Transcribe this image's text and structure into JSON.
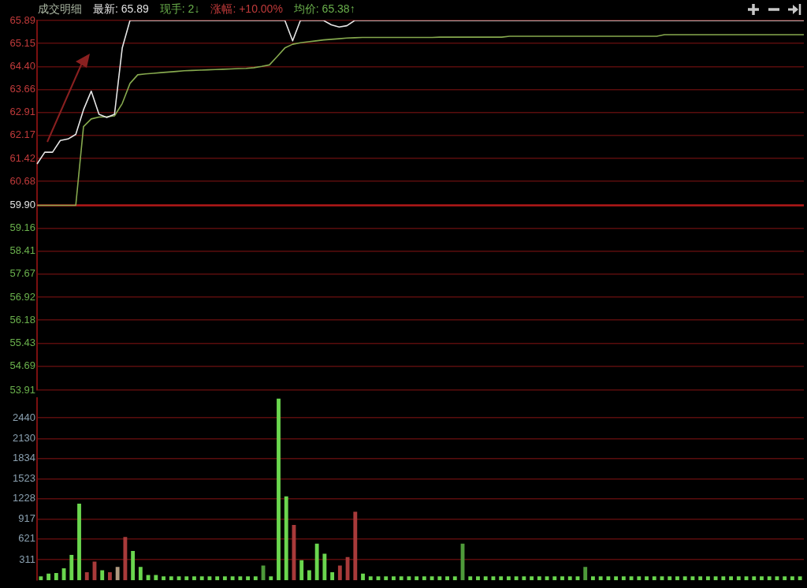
{
  "chart_data": [
    {
      "type": "line",
      "title": "成交明细",
      "annotations": [
        "最新: 65.89",
        "现手: 2↓",
        "涨幅: +10.00%",
        "均价: 65.38↑"
      ],
      "categories": [
        null,
        null,
        null,
        null,
        null,
        null,
        null,
        null,
        null,
        null,
        null,
        null,
        null,
        null,
        null,
        null,
        null,
        null,
        null,
        null,
        null,
        null,
        null,
        null,
        null,
        null,
        null,
        null,
        null,
        null,
        null,
        null,
        null,
        null,
        null,
        null,
        null,
        null,
        null,
        null,
        null,
        null,
        null,
        null,
        null,
        null,
        null,
        null,
        null,
        null,
        null,
        null,
        null,
        null,
        null,
        null,
        null,
        null,
        null,
        null,
        null,
        null,
        null,
        null,
        null,
        null,
        null,
        null,
        null,
        null,
        null,
        null,
        null,
        null,
        null,
        null,
        null,
        null,
        null,
        null,
        null,
        null,
        null,
        null,
        null,
        null,
        null,
        null,
        null,
        null,
        null,
        null,
        null,
        null,
        null,
        null,
        null,
        null,
        null,
        null
      ],
      "series": [
        {
          "color": "#e6e6e6",
          "values": [
            61.24,
            61.62,
            61.62,
            62.0,
            62.05,
            62.2,
            63.0,
            63.6,
            62.85,
            62.75,
            62.85,
            65.0,
            65.89,
            65.89,
            65.89,
            65.89,
            65.89,
            65.89,
            65.89,
            65.89,
            65.89,
            65.89,
            65.89,
            65.89,
            65.89,
            65.89,
            65.89,
            65.89,
            65.89,
            65.89,
            65.89,
            65.89,
            65.89,
            65.23,
            65.89,
            65.89,
            65.89,
            65.89,
            65.75,
            65.68,
            65.72,
            65.89,
            65.89,
            65.89,
            65.89,
            65.89,
            65.89,
            65.89,
            65.89,
            65.89,
            65.89,
            65.89,
            65.89,
            65.89,
            65.89,
            65.89,
            65.89,
            65.89,
            65.89,
            65.89,
            65.89,
            65.89,
            65.89,
            65.89,
            65.89,
            65.89,
            65.89,
            65.89,
            65.89,
            65.89,
            65.89,
            65.89,
            65.89,
            65.89,
            65.89,
            65.89,
            65.89,
            65.89,
            65.89,
            65.89,
            65.89,
            65.89,
            65.89,
            65.89,
            65.89,
            65.89,
            65.89,
            65.89,
            65.89,
            65.89,
            65.89,
            65.89,
            65.89,
            65.89,
            65.89,
            65.89,
            65.89,
            65.89,
            65.89,
            65.89
          ]
        },
        {
          "color": "#86a94e",
          "values": [
            59.9,
            59.9,
            59.9,
            59.9,
            59.9,
            59.9,
            62.45,
            62.7,
            62.76,
            62.77,
            62.8,
            63.2,
            63.85,
            64.13,
            64.16,
            64.18,
            64.2,
            64.22,
            64.24,
            64.26,
            64.27,
            64.28,
            64.29,
            64.3,
            64.31,
            64.32,
            64.33,
            64.34,
            64.36,
            64.4,
            64.45,
            64.72,
            65.0,
            65.12,
            65.17,
            65.2,
            65.23,
            65.26,
            65.28,
            65.3,
            65.32,
            65.33,
            65.34,
            65.34,
            65.34,
            65.34,
            65.34,
            65.34,
            65.34,
            65.34,
            65.34,
            65.34,
            65.35,
            65.35,
            65.35,
            65.35,
            65.35,
            65.35,
            65.35,
            65.35,
            65.35,
            65.38,
            65.38,
            65.38,
            65.38,
            65.38,
            65.38,
            65.38,
            65.38,
            65.38,
            65.38,
            65.38,
            65.38,
            65.38,
            65.38,
            65.38,
            65.38,
            65.38,
            65.38,
            65.38,
            65.38,
            65.43,
            65.43,
            65.43,
            65.43,
            65.43,
            65.43,
            65.43,
            65.43,
            65.43,
            65.43,
            65.43,
            65.43,
            65.43,
            65.43,
            65.43,
            65.43,
            65.43,
            65.43,
            65.43
          ]
        }
      ],
      "ylim": [
        53.91,
        65.89
      ],
      "yticks": [
        65.89,
        65.15,
        {
          "value": 64.4,
          "label": "64.40"
        },
        63.66,
        62.91,
        62.17,
        61.42,
        60.68,
        {
          "value": 59.9,
          "label": "59.90"
        },
        59.16,
        58.41,
        57.67,
        56.92,
        56.18,
        55.43,
        54.69,
        53.91
      ],
      "ref_lines": [
        {
          "axis": "y",
          "value": 59.9,
          "color": "#b01818"
        }
      ],
      "grid": "y",
      "marker": "none",
      "line_style": "solid",
      "tick_labels": "y",
      "legend": false
    },
    {
      "type": "bar",
      "categories": [
        null,
        null,
        null,
        null,
        null,
        null,
        null,
        null,
        null,
        null,
        null,
        null,
        null,
        null,
        null,
        null,
        null,
        null,
        null,
        null,
        null,
        null,
        null,
        null,
        null,
        null,
        null,
        null,
        null,
        null,
        null,
        null,
        null,
        null,
        null,
        null,
        null,
        null,
        null,
        null,
        null,
        null,
        null,
        null,
        null,
        null,
        null,
        null,
        null,
        null,
        null,
        null,
        null,
        null,
        null,
        null,
        null,
        null,
        null,
        null,
        null,
        null,
        null,
        null,
        null,
        null,
        null,
        null,
        null,
        null,
        null,
        null,
        null,
        null,
        null,
        null,
        null,
        null,
        null,
        null,
        null,
        null,
        null,
        null,
        null,
        null,
        null,
        null,
        null,
        null,
        null,
        null,
        null,
        null,
        null,
        null,
        null,
        null,
        null,
        null
      ],
      "values": [
        60,
        100,
        110,
        180,
        380,
        1150,
        120,
        280,
        150,
        120,
        200,
        650,
        440,
        200,
        80,
        80,
        60,
        60,
        60,
        60,
        60,
        60,
        60,
        60,
        60,
        60,
        60,
        60,
        60,
        220,
        60,
        2730,
        1260,
        830,
        300,
        150,
        550,
        400,
        120,
        220,
        350,
        1030,
        100,
        60,
        60,
        60,
        60,
        60,
        60,
        60,
        60,
        60,
        60,
        60,
        60,
        550,
        60,
        60,
        60,
        60,
        60,
        60,
        60,
        60,
        60,
        60,
        60,
        60,
        60,
        60,
        60,
        200,
        60,
        60,
        60,
        60,
        60,
        60,
        60,
        60,
        60,
        60,
        60,
        60,
        60,
        60,
        60,
        60,
        60,
        60,
        60,
        60,
        60,
        60,
        60,
        60,
        60,
        60,
        60,
        60
      ],
      "colors": [
        "#6ad64e",
        "#6ad64e",
        "#6ad64e",
        "#6ad64e",
        "#6ad64e",
        "#6ad64e",
        "#a83a3a",
        "#a83a3a",
        "#6ad64e",
        "#a83a3a",
        "#b09a80",
        "#a83a3a",
        "#6ad64e",
        "#6ad64e",
        "#6ad64e",
        "#6ad64e",
        "#6ad64e",
        "#6ad64e",
        "#6ad64e",
        "#6ad64e",
        "#6ad64e",
        "#6ad64e",
        "#6ad64e",
        "#6ad64e",
        "#6ad64e",
        "#6ad64e",
        "#6ad64e",
        "#6ad64e",
        "#6ad64e",
        "#4e9a3a",
        "#6ad64e",
        "#6ad64e",
        "#6ad64e",
        "#a83a3a",
        "#6ad64e",
        "#6ad64e",
        "#6ad64e",
        "#6ad64e",
        "#6ad64e",
        "#a83a3a",
        "#a83a3a",
        "#a83a3a",
        "#6ad64e",
        "#6ad64e",
        "#6ad64e",
        "#6ad64e",
        "#6ad64e",
        "#6ad64e",
        "#6ad64e",
        "#6ad64e",
        "#6ad64e",
        "#6ad64e",
        "#6ad64e",
        "#6ad64e",
        "#6ad64e",
        "#4e9a3a",
        "#6ad64e",
        "#6ad64e",
        "#6ad64e",
        "#6ad64e",
        "#6ad64e",
        "#6ad64e",
        "#6ad64e",
        "#6ad64e",
        "#6ad64e",
        "#6ad64e",
        "#6ad64e",
        "#6ad64e",
        "#6ad64e",
        "#6ad64e",
        "#6ad64e",
        "#4e9a3a",
        "#6ad64e",
        "#6ad64e",
        "#6ad64e",
        "#6ad64e",
        "#6ad64e",
        "#6ad64e",
        "#6ad64e",
        "#6ad64e",
        "#6ad64e",
        "#6ad64e",
        "#6ad64e",
        "#6ad64e",
        "#6ad64e",
        "#6ad64e",
        "#6ad64e",
        "#6ad64e",
        "#6ad64e",
        "#6ad64e",
        "#6ad64e",
        "#6ad64e",
        "#6ad64e",
        "#6ad64e",
        "#6ad64e",
        "#6ad64e",
        "#6ad64e",
        "#6ad64e",
        "#6ad64e",
        "#6ad64e"
      ],
      "ylim": [
        0,
        2740
      ],
      "yticks": [
        311,
        621,
        917,
        1228,
        1523,
        1834,
        2130,
        2440
      ],
      "grid": "y",
      "tick_labels": "y",
      "legend": false
    }
  ]
}
